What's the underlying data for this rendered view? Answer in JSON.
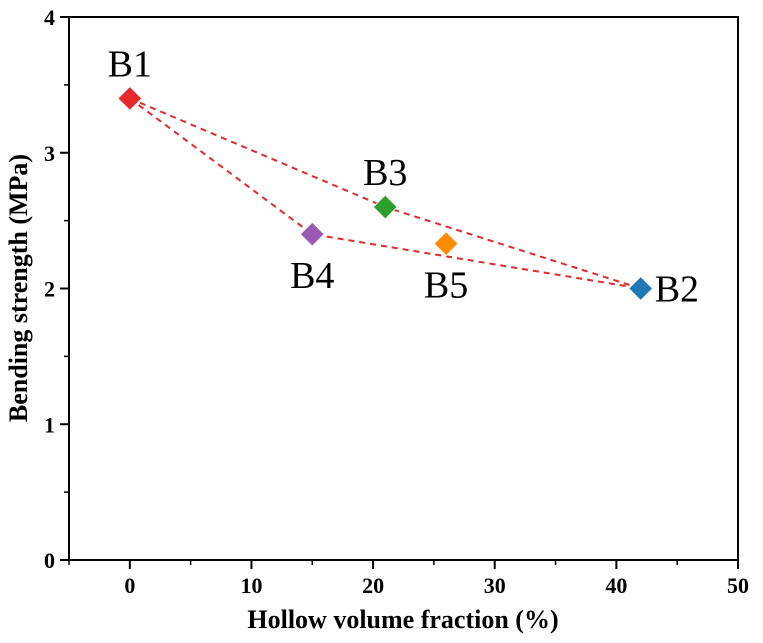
{
  "chart_data": {
    "type": "scatter",
    "xlabel": "Hollow volume fraction (%)",
    "ylabel": "Bending strength (MPa)",
    "xlim": [
      -5,
      50
    ],
    "ylim": [
      0,
      4
    ],
    "x_ticks": [
      "0",
      "10",
      "20",
      "30",
      "40",
      "50"
    ],
    "y_ticks": [
      "0",
      "1",
      "2",
      "3",
      "4"
    ],
    "grid": false,
    "points": [
      {
        "label": "B1",
        "x": 0,
        "y": 3.4,
        "color": "#e8282b",
        "label_pos": "above"
      },
      {
        "label": "B2",
        "x": 42,
        "y": 2.0,
        "color": "#1f77b4",
        "label_pos": "right"
      },
      {
        "label": "B3",
        "x": 21,
        "y": 2.6,
        "color": "#2ca02c",
        "label_pos": "above"
      },
      {
        "label": "B4",
        "x": 15,
        "y": 2.4,
        "color": "#9b59b6",
        "label_pos": "below"
      },
      {
        "label": "B5",
        "x": 26,
        "y": 2.33,
        "color": "#ff8c00",
        "label_pos": "below"
      }
    ],
    "connections": [
      {
        "path": [
          "B1",
          "B3",
          "B2"
        ],
        "color": "#e8282b",
        "style": "dashed"
      },
      {
        "path": [
          "B1",
          "B4",
          "B2"
        ],
        "color": "#e8282b",
        "style": "dashed"
      }
    ]
  }
}
